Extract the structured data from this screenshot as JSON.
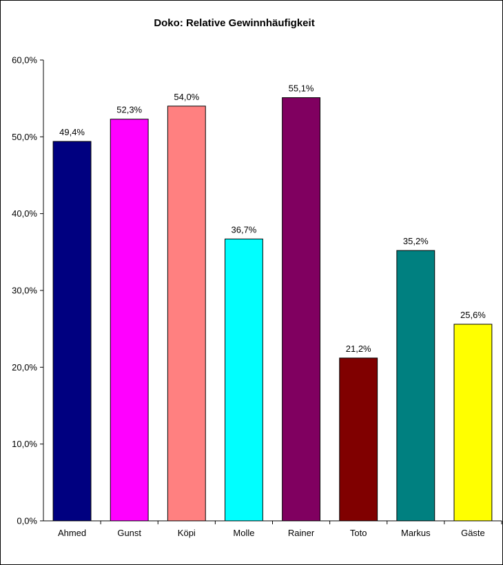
{
  "chart_data": {
    "type": "bar",
    "title": "Doko: Relative Gewinnhäufigkeit",
    "xlabel": "",
    "ylabel": "",
    "ylim": [
      0,
      60
    ],
    "y_ticks": [
      0,
      10,
      20,
      30,
      40,
      50,
      60
    ],
    "y_tick_labels": [
      "0,0%",
      "10,0%",
      "20,0%",
      "30,0%",
      "40,0%",
      "50,0%",
      "60,0%"
    ],
    "grid": false,
    "legend": "none",
    "categories": [
      "Ahmed",
      "Gunst",
      "Köpi",
      "Molle",
      "Rainer",
      "Toto",
      "Markus",
      "Gäste"
    ],
    "values": [
      49.4,
      52.3,
      54.0,
      36.7,
      55.1,
      21.2,
      35.2,
      25.6
    ],
    "value_labels": [
      "49,4%",
      "52,3%",
      "54,0%",
      "36,7%",
      "55,1%",
      "21,2%",
      "35,2%",
      "25,6%"
    ],
    "colors": [
      "#000080",
      "#ff00ff",
      "#ff8080",
      "#00ffff",
      "#800060",
      "#800000",
      "#008080",
      "#ffff00"
    ]
  }
}
